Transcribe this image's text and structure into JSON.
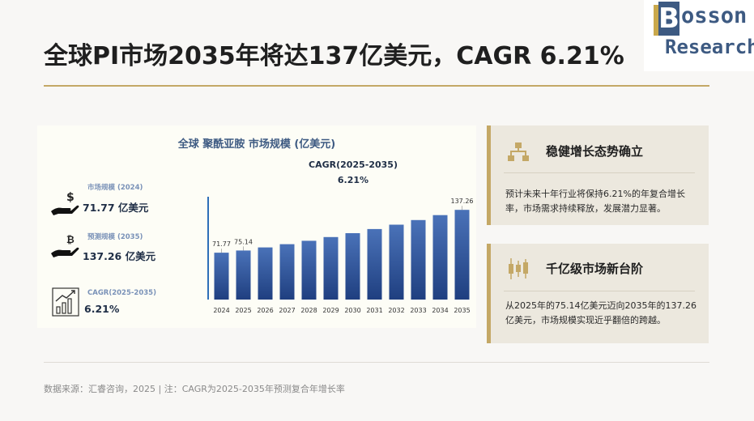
{
  "header": {
    "title": "全球PI市场2035年将达137亿美元，CAGR 6.21%"
  },
  "logo": {
    "letter": "B",
    "word1": "osson",
    "word2": "Research"
  },
  "chart_panel": {
    "title": "全球 聚酰亚胺 市场规模 (亿美元)",
    "kpis": [
      {
        "icon": "money-hand-icon",
        "label": "市场规模 (2024)",
        "value": "71.77 亿美元"
      },
      {
        "icon": "bitcoin-hand-icon",
        "label": "预测规模 (2035)",
        "value": "137.26 亿美元"
      },
      {
        "icon": "growth-chart-icon",
        "label": "CAGR(2025-2035)",
        "value": "6.21%"
      }
    ],
    "cagr_title": "CAGR(2025-2035)",
    "cagr_value": "6.21%"
  },
  "chart_data": {
    "type": "bar",
    "title": "全球 聚酰亚胺 市场规模 (亿美元)",
    "categories": [
      "2024",
      "2025",
      "2026",
      "2027",
      "2028",
      "2029",
      "2030",
      "2031",
      "2032",
      "2033",
      "2034",
      "2035"
    ],
    "values": [
      71.77,
      75.14,
      79.8,
      84.8,
      90.0,
      95.6,
      101.6,
      107.9,
      114.6,
      121.7,
      129.2,
      137.26
    ],
    "data_labels": {
      "0": "71.77",
      "1": "75.14",
      "11": "137.26"
    },
    "ylim": [
      0,
      140
    ],
    "grid": false,
    "colors": {
      "bar_top": "#4a6fb0",
      "bar_bottom": "#1f3d7a",
      "axis": "#2e6fb8"
    }
  },
  "cards": [
    {
      "icon": "org-structure-icon",
      "title": "稳健增长态势确立",
      "text": "预计未来十年行业将保持6.21%的年复合增长率，市场需求持续释放，发展潜力显著。"
    },
    {
      "icon": "candlestick-icon",
      "title": "千亿级市场新台阶",
      "text": "从2025年的75.14亿美元迈向2035年的137.26亿美元，市场规模实现近乎翻倍的跨越。"
    }
  ],
  "footer": {
    "note": "数据来源：汇睿咨询，2025 | 注：CAGR为2025-2035年预测复合年增长率"
  },
  "colors": {
    "accent_gold": "#c4a866",
    "navy": "#3d5a82",
    "bar": "#2f5597"
  }
}
